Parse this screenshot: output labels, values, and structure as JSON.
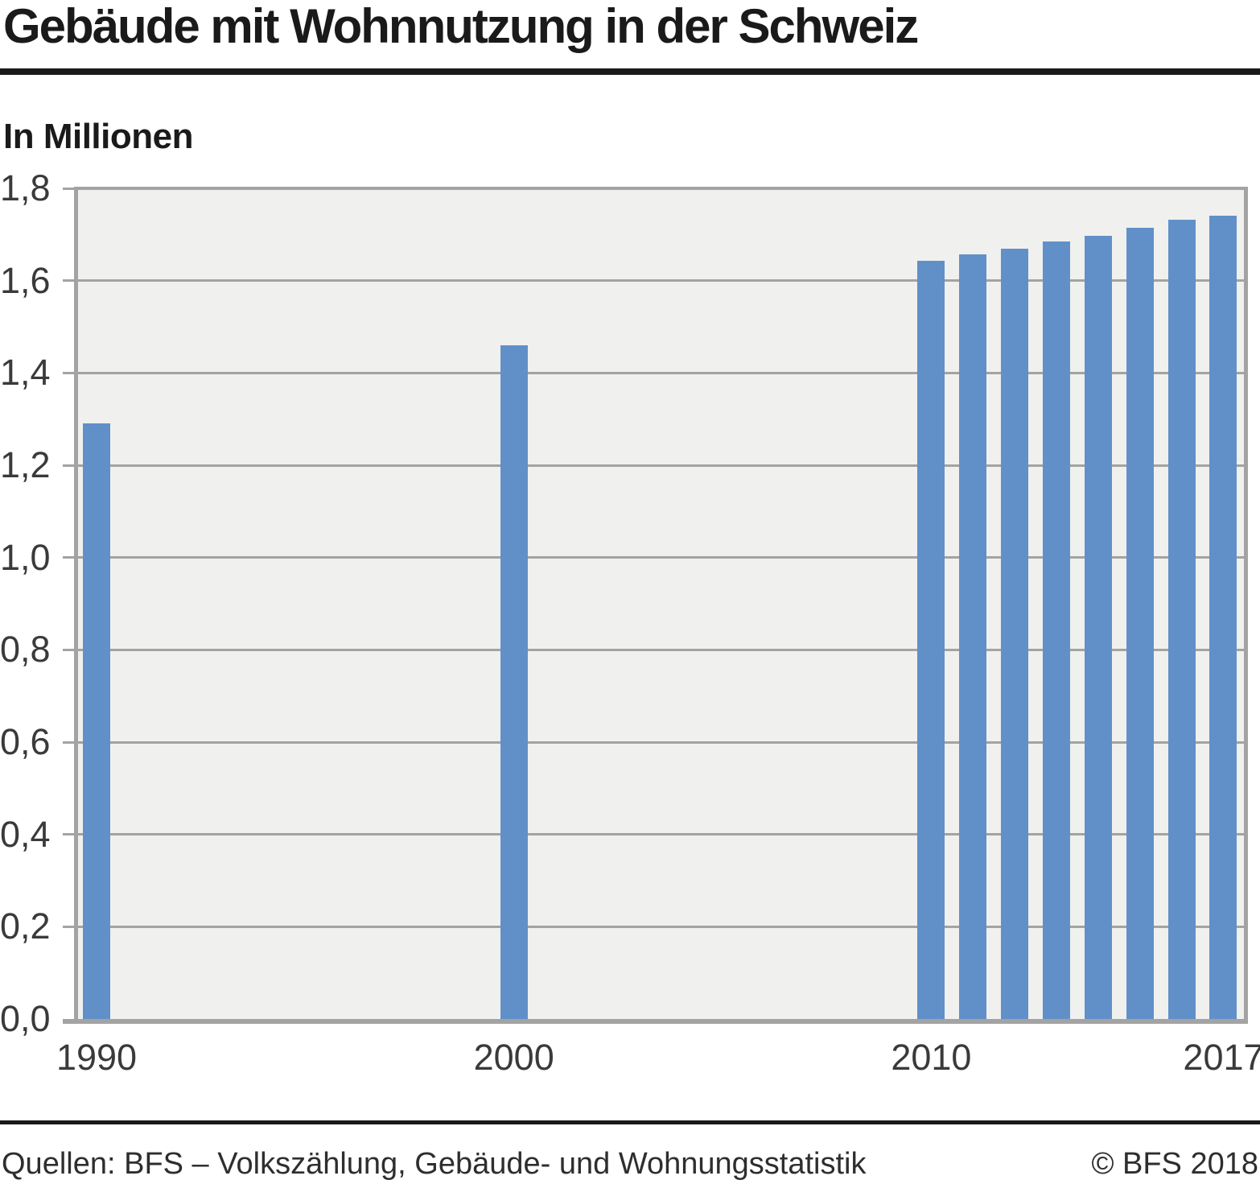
{
  "header": {
    "title": "Gebäude mit Wohnnutzung in der Schweiz",
    "unit_label": "In Millionen"
  },
  "footer": {
    "source": "Quellen: BFS – Volkszählung, Gebäude- und Wohnungsstatistik",
    "copyright": "© BFS 2018"
  },
  "chart_data": {
    "type": "bar",
    "title": "Gebäude mit Wohnnutzung in der Schweiz",
    "ylabel": "In Millionen",
    "xlabel": "",
    "ylim": [
      0,
      1.8
    ],
    "ytick_step": 0.2,
    "ytick_labels": [
      "0,0",
      "0,2",
      "0,4",
      "0,6",
      "0,8",
      "1,0",
      "1,2",
      "1,4",
      "1,6",
      "1,8"
    ],
    "x_axis_labels": [
      "1990",
      "2000",
      "2010",
      "2017"
    ],
    "grid": "horizontal",
    "legend": "none",
    "bar_color": "#6190c9",
    "plot_bg": "#f0f0ef",
    "axis_color": "#a3a3a3",
    "series": [
      {
        "year": 1990,
        "value": 1.29
      },
      {
        "year": 2000,
        "value": 1.46
      },
      {
        "year": 2010,
        "value": 1.643
      },
      {
        "year": 2011,
        "value": 1.657
      },
      {
        "year": 2012,
        "value": 1.67
      },
      {
        "year": 2013,
        "value": 1.685
      },
      {
        "year": 2014,
        "value": 1.697
      },
      {
        "year": 2015,
        "value": 1.715
      },
      {
        "year": 2016,
        "value": 1.732
      },
      {
        "year": 2017,
        "value": 1.741
      }
    ]
  }
}
